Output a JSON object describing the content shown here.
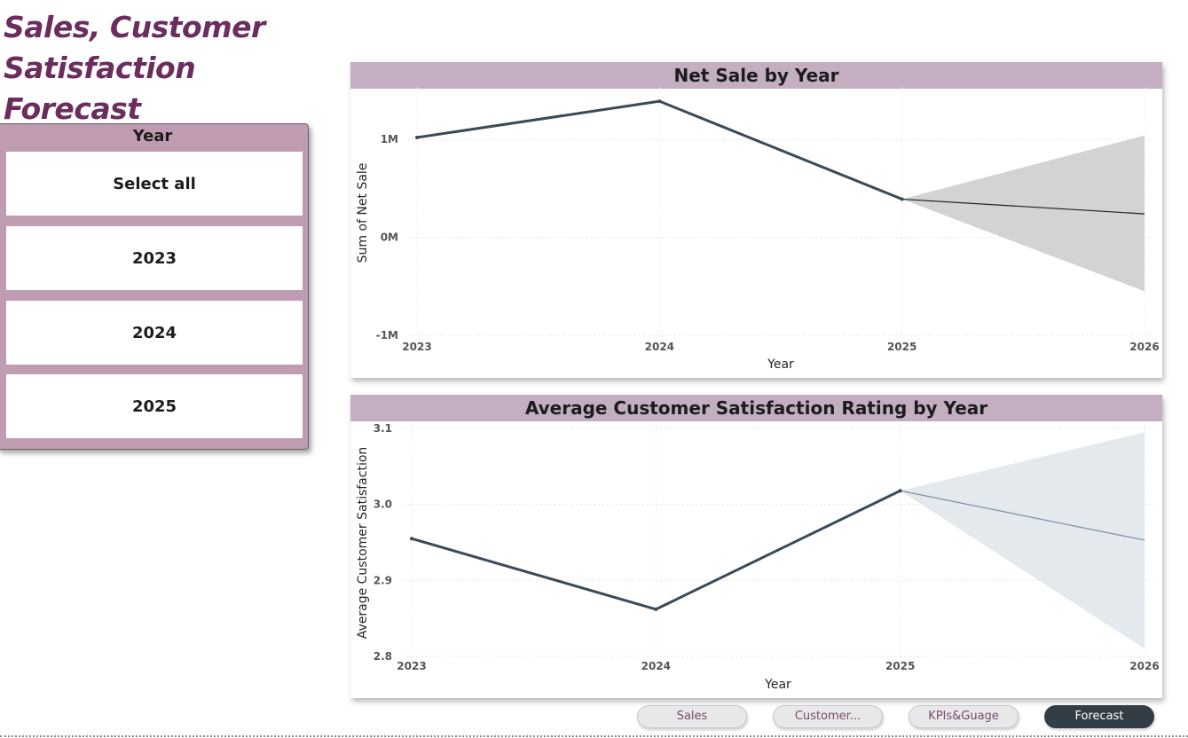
{
  "page": {
    "title_line1": "Sales, Customer",
    "title_line2": "Satisfaction Forecast"
  },
  "slicer": {
    "header": "Year",
    "items": [
      "Select all",
      "2023",
      "2024",
      "2025"
    ]
  },
  "colors": {
    "title": "#6b2d5e",
    "slicer_bg": "#c09cb2",
    "chart_header_bg": "#c3aec2",
    "line": "#3b4a57",
    "net_forecast_band": "#d3d3d5",
    "sat_forecast_band": "#e4e9ee",
    "net_forecast_line": "#1f1f1f",
    "sat_forecast_line": "#7d8fa0",
    "active_nav": "#323d46"
  },
  "chart_data": [
    {
      "type": "line",
      "title": "Net Sale by Year",
      "xlabel": "Year",
      "ylabel": "Sum of Net Sale",
      "x": [
        2023,
        2024,
        2025
      ],
      "values": [
        1020000,
        1390000,
        390000
      ],
      "forecast": {
        "x": [
          2025,
          2026
        ],
        "values": [
          390000,
          240000
        ],
        "upper": [
          390000,
          1040000
        ],
        "lower": [
          390000,
          -550000
        ]
      },
      "xlim": [
        2023,
        2026
      ],
      "ylim": [
        -1000000,
        1500000
      ],
      "x_ticks": [
        "2023",
        "2024",
        "2025",
        "2026"
      ],
      "y_ticks": [
        {
          "value": -1000000,
          "label": "-1M"
        },
        {
          "value": 0,
          "label": "0M"
        },
        {
          "value": 1000000,
          "label": "1M"
        }
      ],
      "grid": true
    },
    {
      "type": "line",
      "title": "Average Customer Satisfaction Rating by Year",
      "xlabel": "Year",
      "ylabel": "Average Customer Satisfaction",
      "x": [
        2023,
        2024,
        2025
      ],
      "values": [
        2.955,
        2.862,
        3.018
      ],
      "forecast": {
        "x": [
          2025,
          2026
        ],
        "values": [
          3.018,
          2.953
        ],
        "upper": [
          3.018,
          3.095
        ],
        "lower": [
          3.018,
          2.81
        ]
      },
      "xlim": [
        2023,
        2026
      ],
      "ylim": [
        2.8,
        3.1
      ],
      "x_ticks": [
        "2023",
        "2024",
        "2025",
        "2026"
      ],
      "y_ticks": [
        {
          "value": 2.8,
          "label": "2.8"
        },
        {
          "value": 2.9,
          "label": "2.9"
        },
        {
          "value": 3.0,
          "label": "3.0"
        },
        {
          "value": 3.1,
          "label": "3.1"
        }
      ],
      "grid": true
    }
  ],
  "nav": {
    "buttons": [
      {
        "label": "Sales",
        "active": false
      },
      {
        "label": "Customer...",
        "active": false
      },
      {
        "label": "KPIs&Guage",
        "active": false
      },
      {
        "label": "Forecast",
        "active": true
      }
    ]
  }
}
